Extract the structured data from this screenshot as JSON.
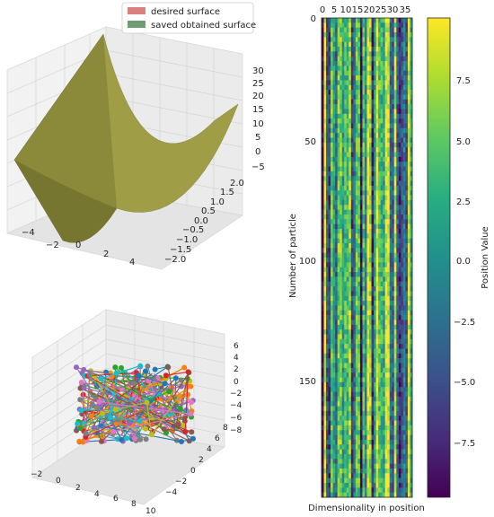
{
  "figure": {
    "surface_plot": {
      "legend": [
        "desired surface",
        "saved obtained surface"
      ],
      "legend_colors": [
        "#d98080",
        "#6e9e72"
      ],
      "surface_color": "#8a8a3a",
      "x_ticks": [
        "−4",
        "−2",
        "0",
        "2",
        "4"
      ],
      "y_ticks": [
        "−2.0",
        "−1.5",
        "−1.0",
        "−0.5",
        "0.0",
        "0.5",
        "1.0",
        "1.5",
        "2.0"
      ],
      "z_ticks": [
        "−5",
        "0",
        "5",
        "10",
        "15",
        "20",
        "25",
        "30"
      ]
    },
    "scatter_plot": {
      "x_ticks": [
        "−2",
        "0",
        "2",
        "4",
        "6",
        "8",
        "10"
      ],
      "y_ticks": [
        "−4",
        "−2",
        "0",
        "2",
        "4",
        "6",
        "8"
      ],
      "z_ticks": [
        "−8",
        "−6",
        "−4",
        "−2",
        "0",
        "2",
        "4",
        "6"
      ],
      "series_colors": [
        "#1f77b4",
        "#ff7f0e",
        "#2ca02c",
        "#d62728",
        "#9467bd",
        "#8c564b",
        "#e377c2",
        "#7f7f7f",
        "#bcbd22",
        "#17becf"
      ]
    },
    "heatmap": {
      "ylabel": "Number of particle",
      "xlabel": "Dimensionality in position",
      "x_tick_labels": [
        "0",
        "5",
        "10",
        "15",
        "20",
        "25",
        "30",
        "35"
      ],
      "y_tick_labels": [
        "0",
        "50",
        "100",
        "150"
      ],
      "colorbar_label": "Position Value",
      "colorbar_ticks": [
        "7.5",
        "5.0",
        "2.5",
        "0.0",
        "−2.5",
        "−5.0",
        "−7.5"
      ],
      "colormap": "viridis"
    }
  },
  "chart_data": [
    {
      "type": "surface",
      "title": "",
      "legend": [
        "desired surface",
        "saved obtained surface"
      ],
      "xlim": [
        -5,
        5
      ],
      "ylim": [
        -2,
        2
      ],
      "zlim": [
        -5,
        32
      ],
      "shape": "parabolic trough, z ≈ x² + small linear term, maximum ≈ 30 at x = -5"
    },
    {
      "type": "scatter",
      "title": "",
      "xlim": [
        -3,
        10
      ],
      "ylim": [
        -5,
        8
      ],
      "zlim": [
        -9,
        7
      ],
      "series_count": 10
    },
    {
      "type": "heatmap",
      "xlabel": "Dimensionality in position",
      "ylabel": "Number of particle",
      "x_range": [
        0,
        39
      ],
      "y_range": [
        0,
        199
      ],
      "colorbar_label": "Position Value",
      "vmin": -9.8,
      "vmax": 9.8
    }
  ]
}
